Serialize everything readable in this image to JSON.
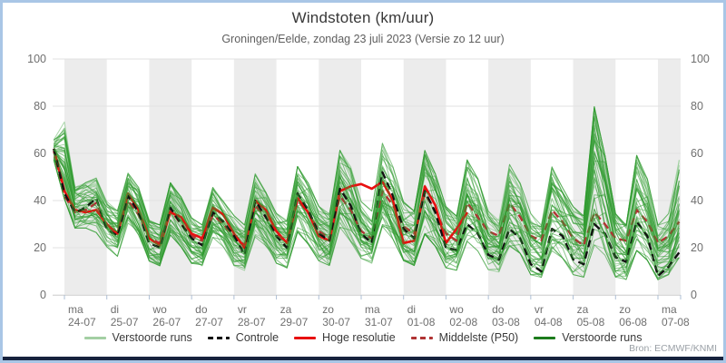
{
  "footer": {
    "source": "Bron: ECMWF/KNMI"
  },
  "legend": {
    "items": [
      {
        "label": "Verstoorde runs",
        "color": "#a3cfa3",
        "dash": false
      },
      {
        "label": "Controle",
        "color": "#111111",
        "dash": true
      },
      {
        "label": "Hoge resolutie",
        "color": "#e81010",
        "dash": false
      },
      {
        "label": "Middelste (P50)",
        "color": "#b03434",
        "dash": true
      },
      {
        "label": "Verstoorde runs",
        "color": "#1c7c1c",
        "dash": false
      }
    ]
  },
  "colors": {
    "band": "#ececec",
    "grid": "#e2e2e2",
    "axis": "#d8d8d8",
    "tick": "#aebfd4",
    "member": "#2f9b2f",
    "member_light": "#9bcf9b",
    "frame": "#a9c6e6",
    "bottom_bar": "#16223d"
  },
  "chart_data": {
    "type": "line",
    "title": "Windstoten (km/uur)",
    "subtitle": "Groningen/Eelde, zondag 23 juli 2023 (Versie zo 12 uur)",
    "ylabel": "km/uur",
    "ylim": [
      0,
      100
    ],
    "yticks": [
      0,
      20,
      40,
      60,
      80,
      100
    ],
    "grid": true,
    "legend_position": "bottom",
    "x_unit": "days since 2023-07-24 00:00, 6-hourly",
    "x_start": -0.25,
    "x_step": 0.25,
    "x_tick_labels": [
      {
        "day": "ma",
        "date": "24-07"
      },
      {
        "day": "di",
        "date": "25-07"
      },
      {
        "day": "wo",
        "date": "26-07"
      },
      {
        "day": "do",
        "date": "27-07"
      },
      {
        "day": "vr",
        "date": "28-07"
      },
      {
        "day": "za",
        "date": "29-07"
      },
      {
        "day": "zo",
        "date": "30-07"
      },
      {
        "day": "ma",
        "date": "31-07"
      },
      {
        "day": "di",
        "date": "01-08"
      },
      {
        "day": "wo",
        "date": "02-08"
      },
      {
        "day": "do",
        "date": "03-08"
      },
      {
        "day": "vr",
        "date": "04-08"
      },
      {
        "day": "za",
        "date": "05-08"
      },
      {
        "day": "zo",
        "date": "06-08"
      },
      {
        "day": "ma",
        "date": "07-08"
      }
    ],
    "series": [
      {
        "name": "Controle",
        "role": "controle",
        "color": "#111111",
        "dashed": true,
        "values": [
          62,
          43,
          35,
          37,
          41,
          28,
          25,
          42,
          35,
          22,
          20,
          37,
          30,
          24,
          21,
          35,
          31,
          25,
          17,
          40,
          33,
          25,
          20,
          43,
          36,
          26,
          23,
          45,
          38,
          26,
          22,
          52,
          42,
          28,
          24,
          44,
          35,
          20,
          19,
          30,
          26,
          17,
          15,
          28,
          24,
          13,
          10,
          28,
          25,
          15,
          13,
          30,
          26,
          16,
          14,
          31,
          25,
          8,
          12,
          18
        ]
      },
      {
        "name": "Hoge resolutie",
        "role": "hres",
        "color": "#e81010",
        "dashed": false,
        "values": [
          62,
          44,
          36,
          35,
          36,
          30,
          26,
          43,
          36,
          24,
          21,
          35,
          33,
          26,
          24,
          37,
          34,
          26,
          20,
          40,
          36,
          27,
          22,
          41,
          35,
          25,
          23,
          44,
          46,
          47,
          45,
          48,
          40,
          22,
          23,
          46,
          38,
          22,
          28,
          35
        ]
      },
      {
        "name": "Middelste (P50)",
        "role": "p50",
        "color": "#b03434",
        "dashed": true,
        "values": [
          61,
          42,
          35,
          36,
          39,
          29,
          26,
          40,
          34,
          24,
          22,
          36,
          30,
          25,
          23,
          34,
          30,
          25,
          21,
          38,
          33,
          26,
          22,
          40,
          35,
          27,
          24,
          42,
          36,
          27,
          24,
          44,
          38,
          29,
          26,
          43,
          36,
          26,
          23,
          39,
          33,
          27,
          25,
          39,
          33,
          25,
          23,
          36,
          31,
          24,
          21,
          35,
          30,
          24,
          23,
          36,
          31,
          22,
          25,
          31
        ]
      }
    ],
    "ensemble": {
      "name": "Verstoorde runs",
      "count": 50,
      "light_count": 12,
      "seed": 42,
      "envelope_min": [
        57,
        40,
        28,
        28,
        26,
        20,
        16,
        30,
        25,
        14,
        12,
        25,
        20,
        13,
        12,
        24,
        20,
        12,
        10,
        24,
        20,
        13,
        11,
        26,
        21,
        14,
        12,
        28,
        22,
        15,
        13,
        28,
        23,
        14,
        12,
        25,
        20,
        11,
        10,
        22,
        18,
        10,
        9,
        20,
        17,
        8,
        7,
        18,
        15,
        8,
        7,
        20,
        16,
        7,
        6,
        18,
        14,
        6,
        8,
        15
      ],
      "envelope_max": [
        66,
        74,
        46,
        48,
        50,
        40,
        36,
        52,
        46,
        32,
        30,
        48,
        42,
        33,
        30,
        46,
        40,
        34,
        30,
        52,
        44,
        35,
        32,
        55,
        48,
        38,
        35,
        62,
        55,
        40,
        36,
        65,
        55,
        40,
        36,
        62,
        52,
        38,
        34,
        58,
        50,
        36,
        32,
        56,
        48,
        35,
        30,
        55,
        46,
        38,
        34,
        81,
        60,
        35,
        30,
        60,
        50,
        30,
        35,
        58
      ]
    }
  }
}
